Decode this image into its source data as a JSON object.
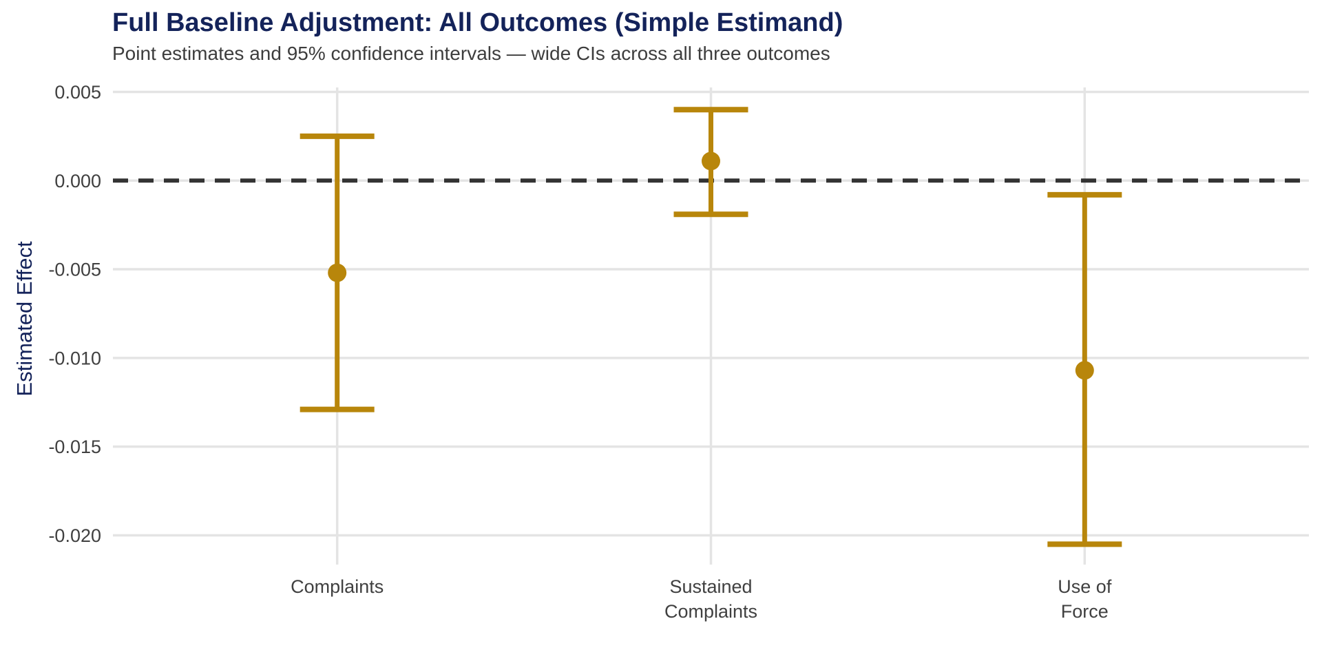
{
  "chart_data": {
    "type": "scatter",
    "subtype": "point-estimates-with-error-bars",
    "title": "Full Baseline Adjustment: All Outcomes (Simple Estimand)",
    "subtitle": "Point estimates and 95% confidence intervals — wide CIs across all three outcomes",
    "ylabel": "Estimated Effect",
    "xlabel": "",
    "categories": [
      "Complaints",
      "Sustained Complaints",
      "Use of Force"
    ],
    "category_label_lines": [
      [
        "Complaints"
      ],
      [
        "Sustained",
        "Complaints"
      ],
      [
        "Use of",
        "Force"
      ]
    ],
    "series": [
      {
        "name": "estimate",
        "values": [
          -0.0052,
          0.0011,
          -0.0107
        ]
      },
      {
        "name": "ci_lower_95",
        "values": [
          -0.0129,
          -0.0019,
          -0.0205
        ]
      },
      {
        "name": "ci_upper_95",
        "values": [
          0.0025,
          0.004,
          -0.0008
        ]
      }
    ],
    "yticks": [
      0.005,
      0.0,
      -0.005,
      -0.01,
      -0.015,
      -0.02
    ],
    "ytick_labels": [
      "0.005",
      "0.000",
      "-0.005",
      "-0.010",
      "-0.015",
      "-0.020"
    ],
    "ylim": [
      -0.02165,
      0.00525
    ],
    "reference_line": {
      "y": 0,
      "style": "dashed"
    },
    "grid": "major-only",
    "legend": false,
    "colors": {
      "point": "#B8860B",
      "error_bar": "#B8860B",
      "title": "#14235A",
      "axis_title": "#14235A",
      "subtitle": "#3D3D3D",
      "tick_label": "#404040",
      "gridline": "#E4E4E4",
      "reference_line": "#333333",
      "background": "#FFFFFF"
    }
  }
}
